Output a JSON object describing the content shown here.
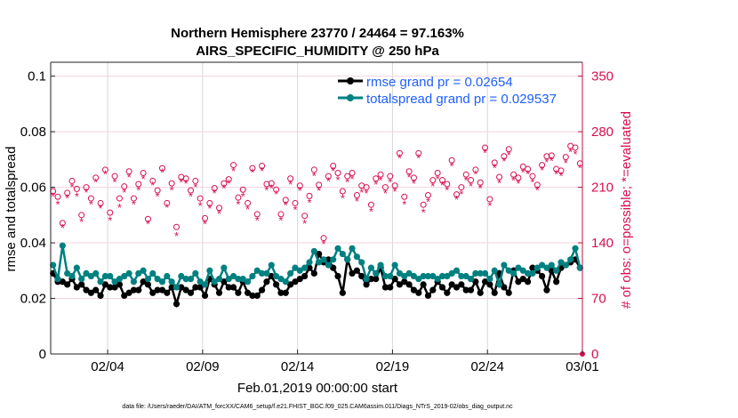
{
  "chart_data": {
    "type": "line",
    "title": [
      "Northern Hemisphere 23770 / 24464 = 97.163%",
      "AIRS_SPECIFIC_HUMIDITY @ 250 hPa"
    ],
    "xlabel": "Feb.01,2019 00:00:00 start",
    "ylabel": "rmse and totalspread",
    "ylabel_right": "# of obs: o=possible; *=evaluated",
    "footer": "data file: /Users/raeder/DAI/ATM_forcXX/CAM6_setup/f.e21.FHIST_BGC.f09_025.CAM6assim.011/Diags_NTrS_2019-02/obs_diag_output.nc",
    "x_unit": "days since Feb 01 2019",
    "xlim": [
      0,
      28
    ],
    "xticks": [
      3,
      8,
      13,
      18,
      23,
      28
    ],
    "xtick_labels": [
      "02/04",
      "02/09",
      "02/14",
      "02/19",
      "02/24",
      "03/01"
    ],
    "ylim": [
      0,
      0.105
    ],
    "yticks": [
      0,
      0.02,
      0.04,
      0.06,
      0.08,
      0.1
    ],
    "ytick_labels": [
      "0",
      "0.02",
      "0.04",
      "0.06",
      "0.08",
      "0.1"
    ],
    "ylim_right": [
      0,
      367.5
    ],
    "yticks_right": [
      0,
      70,
      140,
      210,
      280,
      350
    ],
    "ytick_labels_right": [
      "0",
      "70",
      "140",
      "210",
      "280",
      "350"
    ],
    "grid": true,
    "legend_position": "top-right",
    "colors": {
      "rmse": "#000000",
      "totalspread": "#008080",
      "obs": "#d6104f",
      "legend_text": "#1f5fff",
      "right_axis": "#c0103f"
    },
    "series": [
      {
        "name": "rmse grand pr = 0.02654",
        "values": [
          0.029,
          0.026,
          0.026,
          0.025,
          0.027,
          0.024,
          0.025,
          0.023,
          0.022,
          0.023,
          0.021,
          0.025,
          0.024,
          0.024,
          0.025,
          0.021,
          0.022,
          0.023,
          0.023,
          0.026,
          0.025,
          0.022,
          0.023,
          0.023,
          0.022,
          0.024,
          0.018,
          0.024,
          0.023,
          0.022,
          0.024,
          0.024,
          0.021,
          0.027,
          0.025,
          0.022,
          0.026,
          0.024,
          0.024,
          0.022,
          0.026,
          0.022,
          0.021,
          0.021,
          0.023,
          0.026,
          0.028,
          0.025,
          0.022,
          0.022,
          0.025,
          0.026,
          0.027,
          0.028,
          0.031,
          0.029,
          0.036,
          0.033,
          0.034,
          0.031,
          0.028,
          0.022,
          0.034,
          0.029,
          0.03,
          0.028,
          0.025,
          0.027,
          0.027,
          0.031,
          0.024,
          0.024,
          0.027,
          0.025,
          0.026,
          0.025,
          0.023,
          0.022,
          0.025,
          0.021,
          0.023,
          0.026,
          0.024,
          0.022,
          0.025,
          0.024,
          0.025,
          0.023,
          0.023,
          0.026,
          0.022,
          0.026,
          0.025,
          0.022,
          0.029,
          0.024,
          0.022,
          0.03,
          0.026,
          0.027,
          0.026,
          0.031,
          0.03,
          0.028,
          0.023,
          0.03,
          0.026,
          0.031,
          0.032,
          0.033,
          0.034,
          0.031
        ]
      },
      {
        "name": "totalspread grand pr = 0.029537",
        "values": [
          0.032,
          0.027,
          0.039,
          0.029,
          0.028,
          0.031,
          0.027,
          0.029,
          0.028,
          0.029,
          0.026,
          0.028,
          0.028,
          0.026,
          0.027,
          0.028,
          0.029,
          0.026,
          0.029,
          0.03,
          0.027,
          0.029,
          0.027,
          0.026,
          0.028,
          0.026,
          0.024,
          0.028,
          0.027,
          0.027,
          0.029,
          0.026,
          0.025,
          0.03,
          0.026,
          0.027,
          0.031,
          0.027,
          0.028,
          0.027,
          0.027,
          0.026,
          0.028,
          0.03,
          0.029,
          0.029,
          0.032,
          0.028,
          0.027,
          0.026,
          0.029,
          0.031,
          0.03,
          0.031,
          0.033,
          0.037,
          0.033,
          0.034,
          0.032,
          0.034,
          0.038,
          0.036,
          0.034,
          0.038,
          0.035,
          0.033,
          0.027,
          0.031,
          0.029,
          0.032,
          0.028,
          0.028,
          0.032,
          0.029,
          0.028,
          0.029,
          0.028,
          0.027,
          0.028,
          0.028,
          0.028,
          0.027,
          0.028,
          0.028,
          0.029,
          0.03,
          0.028,
          0.028,
          0.027,
          0.029,
          0.029,
          0.029,
          0.027,
          0.03,
          0.025,
          0.032,
          0.03,
          0.029,
          0.031,
          0.03,
          0.029,
          0.029,
          0.031,
          0.032,
          0.031,
          0.032,
          0.03,
          0.033,
          0.032,
          0.034,
          0.038,
          0.031
        ]
      }
    ],
    "obs_possible": [
      205,
      198,
      165,
      203,
      218,
      208,
      175,
      210,
      196,
      222,
      190,
      232,
      178,
      224,
      196,
      211,
      230,
      196,
      214,
      228,
      170,
      218,
      206,
      234,
      190,
      215,
      160,
      223,
      221,
      206,
      218,
      196,
      171,
      190,
      209,
      184,
      215,
      220,
      238,
      197,
      207,
      190,
      234,
      176,
      237,
      214,
      215,
      207,
      176,
      194,
      221,
      190,
      212,
      174,
      199,
      232,
      213,
      146,
      224,
      237,
      228,
      205,
      224,
      228,
      200,
      212,
      210,
      188,
      221,
      226,
      210,
      224,
      212,
      253,
      198,
      230,
      222,
      253,
      188,
      200,
      219,
      228,
      219,
      214,
      244,
      201,
      210,
      226,
      219,
      232,
      216,
      260,
      195,
      241,
      223,
      249,
      258,
      226,
      222,
      236,
      233,
      224,
      213,
      238,
      249,
      250,
      233,
      231,
      248,
      262,
      260,
      240
    ],
    "obs_evaluated": [
      200,
      190,
      160,
      198,
      212,
      200,
      168,
      205,
      190,
      218,
      185,
      228,
      170,
      218,
      186,
      205,
      224,
      190,
      208,
      222,
      165,
      214,
      200,
      230,
      186,
      208,
      150,
      218,
      216,
      200,
      212,
      188,
      165,
      185,
      204,
      178,
      210,
      216,
      232,
      190,
      200,
      184,
      230,
      170,
      232,
      208,
      210,
      203,
      170,
      189,
      215,
      183,
      207,
      166,
      192,
      226,
      207,
      140,
      219,
      232,
      221,
      198,
      218,
      222,
      194,
      205,
      204,
      181,
      215,
      220,
      204,
      218,
      206,
      248,
      190,
      224,
      216,
      248,
      180,
      193,
      213,
      222,
      214,
      208,
      238,
      196,
      203,
      220,
      213,
      228,
      210,
      255,
      188,
      236,
      217,
      244,
      252,
      220,
      216,
      230,
      228,
      218,
      208,
      233,
      243,
      245,
      228,
      226,
      242,
      256,
      253,
      236
    ]
  }
}
